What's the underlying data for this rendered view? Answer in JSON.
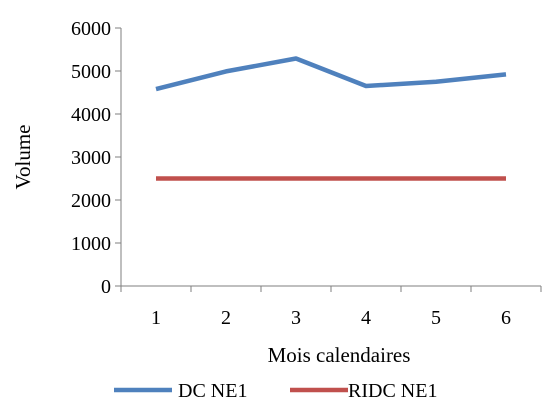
{
  "chart_data": {
    "type": "line",
    "x": [
      1,
      2,
      3,
      4,
      5,
      6
    ],
    "x_tick_labels": [
      "1",
      "2",
      "3",
      "4",
      "5",
      "6"
    ],
    "ylim": [
      0,
      6000
    ],
    "y_ticks": [
      0,
      1000,
      2000,
      3000,
      4000,
      5000,
      6000
    ],
    "y_tick_labels": [
      "0",
      "1000",
      "2000",
      "3000",
      "4000",
      "5000",
      "6000"
    ],
    "xlabel": "Mois calendaires",
    "ylabel": "Volume",
    "title": "",
    "grid": false,
    "legend_position": "bottom",
    "series": [
      {
        "name": "DC NE1",
        "color": "#4F81BD",
        "values": [
          4580,
          4990,
          5290,
          4650,
          4750,
          4920
        ]
      },
      {
        "name": "RIDC NE1",
        "color": "#C0504D",
        "values": [
          2500,
          2500,
          2500,
          2500,
          2500,
          2500
        ]
      }
    ]
  }
}
